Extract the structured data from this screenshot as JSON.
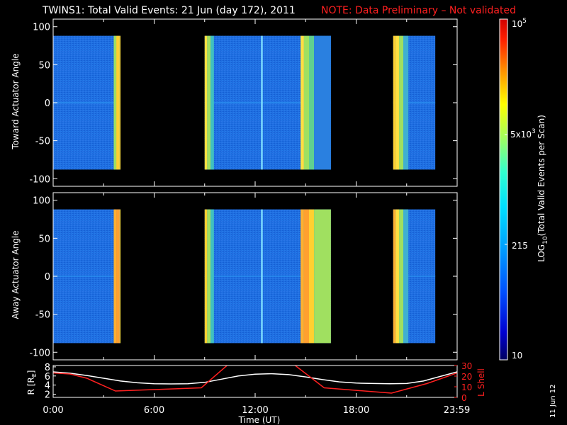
{
  "title": {
    "main": "TWINS1: Total Valid Events: 21 Jun (day 172), 2011",
    "note": "NOTE: Data Preliminary – Not validated"
  },
  "colorbar": {
    "label": "LOG10(Total Valid Events per Scan)",
    "label_main": "LOG",
    "label_sub": "10",
    "label_rest": "(Total Valid Events per Scan)",
    "ticks": [
      "10",
      "215",
      "5x10^3",
      "10^5"
    ],
    "tick_top": "10",
    "tick_top_sup": "5",
    "tick_5k_base": "5x10",
    "tick_5k_sup": "3",
    "tick_215": "215",
    "tick_10": "10",
    "range": [
      10,
      100000
    ],
    "scale": "log",
    "colormap": [
      "#000080",
      "#0000ff",
      "#0060ff",
      "#00c0ff",
      "#30ffd0",
      "#a0ff60",
      "#ffff00",
      "#ff9000",
      "#ff2000",
      "#d00000"
    ]
  },
  "stamp": "11 Jun 12",
  "colors": {
    "background": "#000000",
    "note": "#ff2020",
    "panel_border": "#ffffff",
    "r_line": "#ffffff",
    "lshell_line": "#ff2020"
  },
  "chart_data": [
    {
      "type": "heatmap",
      "ylabel": "Toward Actuator Angle",
      "yticks": [
        "100",
        "50",
        "0",
        "-50",
        "-100"
      ],
      "yticks_values": [
        100,
        50,
        0,
        -50,
        -100
      ],
      "ylim": [
        -110,
        110
      ],
      "xlim": [
        0,
        24
      ],
      "data_y_range": [
        -88,
        88
      ],
      "segments": [
        {
          "start": 0.0,
          "end": 4.0,
          "base": "#1e6ee0",
          "mid": "#2a8ef0",
          "edge_start": 3.6,
          "bands": [
            [
              3.6,
              3.75,
              "#a0e060"
            ],
            [
              3.75,
              3.95,
              "#ffd030"
            ],
            [
              3.95,
              4.0,
              "#ffe040"
            ]
          ]
        },
        {
          "start": 9.0,
          "end": 16.5,
          "base": "#1e6ee0",
          "mid": "#2a8ef0",
          "edge_start": null,
          "bands": [
            [
              9.0,
              9.15,
              "#ffe040"
            ],
            [
              9.15,
              9.35,
              "#a0e060"
            ],
            [
              9.35,
              9.55,
              "#40c0c0"
            ],
            [
              12.35,
              12.45,
              "#80e0ff"
            ],
            [
              14.7,
              14.9,
              "#ffe040"
            ],
            [
              14.9,
              15.2,
              "#a0e060"
            ],
            [
              15.2,
              15.5,
              "#60d090"
            ],
            [
              15.5,
              16.5,
              "#2a80e0"
            ]
          ]
        },
        {
          "start": 20.2,
          "end": 22.7,
          "base": "#1e6ee0",
          "mid": "#2a8ef0",
          "edge_start": null,
          "bands": [
            [
              20.2,
              20.35,
              "#ffd030"
            ],
            [
              20.35,
              20.55,
              "#ffe040"
            ],
            [
              20.55,
              20.8,
              "#a0e060"
            ],
            [
              20.8,
              21.1,
              "#40b0d0"
            ]
          ]
        }
      ]
    },
    {
      "type": "heatmap",
      "ylabel": "Away Actuator Angle",
      "yticks": [
        "100",
        "50",
        "0",
        "-50",
        "-100"
      ],
      "yticks_values": [
        100,
        50,
        0,
        -50,
        -100
      ],
      "ylim": [
        -110,
        110
      ],
      "xlim": [
        0,
        24
      ],
      "data_y_range": [
        -88,
        88
      ],
      "segments": [
        {
          "start": 0.0,
          "end": 4.0,
          "base": "#1e6ee0",
          "mid": "#2a8ef0",
          "edge_start": 3.6,
          "bands": [
            [
              3.6,
              3.75,
              "#ffb030"
            ],
            [
              3.75,
              3.95,
              "#ffa030"
            ],
            [
              3.95,
              4.0,
              "#ffe040"
            ]
          ]
        },
        {
          "start": 9.0,
          "end": 16.5,
          "base": "#1e6ee0",
          "mid": "#2a8ef0",
          "edge_start": null,
          "bands": [
            [
              9.0,
              9.15,
              "#ffd030"
            ],
            [
              9.15,
              9.35,
              "#a0e060"
            ],
            [
              9.35,
              9.55,
              "#40c0c0"
            ],
            [
              12.35,
              12.45,
              "#80e0ff"
            ],
            [
              14.7,
              14.9,
              "#ffb030"
            ],
            [
              14.9,
              15.2,
              "#ffa030"
            ],
            [
              15.2,
              15.5,
              "#ffd030"
            ],
            [
              15.5,
              16.5,
              "#a0e060"
            ]
          ]
        },
        {
          "start": 20.2,
          "end": 22.7,
          "base": "#1e6ee0",
          "mid": "#2a8ef0",
          "edge_start": null,
          "bands": [
            [
              20.2,
              20.35,
              "#ffb030"
            ],
            [
              20.35,
              20.55,
              "#ffe040"
            ],
            [
              20.55,
              20.8,
              "#a0e060"
            ],
            [
              20.8,
              21.1,
              "#40b0d0"
            ]
          ]
        }
      ]
    },
    {
      "type": "line",
      "xlabel": "Time (UT)",
      "xticks": [
        "0:00",
        "6:00",
        "12:00",
        "18:00",
        "23:59"
      ],
      "xticks_values": [
        0,
        6,
        12,
        18,
        23.98
      ],
      "xlim": [
        0,
        24
      ],
      "left_axis": {
        "label": "R [RE]",
        "label_main": "R [R",
        "label_sub": "E",
        "label_close": "]",
        "ticks": [
          "2",
          "4",
          "6",
          "8"
        ],
        "ticks_values": [
          2,
          4,
          6,
          8
        ],
        "ylim": [
          1.3,
          8.3
        ]
      },
      "right_axis": {
        "label": "L Shell",
        "ticks": [
          "0",
          "10",
          "20",
          "30"
        ],
        "ticks_values": [
          0,
          10,
          20,
          30
        ],
        "ylim": [
          0,
          30
        ]
      },
      "series": [
        {
          "axis": "left",
          "x": [
            0,
            1,
            2,
            3,
            4,
            5,
            6,
            7,
            8,
            9,
            10,
            11,
            12,
            13,
            14,
            15,
            16,
            17,
            18,
            19,
            20,
            21,
            22,
            23,
            24
          ],
          "y": [
            6.9,
            6.6,
            6.1,
            5.5,
            4.9,
            4.5,
            4.3,
            4.25,
            4.3,
            4.6,
            5.3,
            6.0,
            6.4,
            6.5,
            6.3,
            5.8,
            5.2,
            4.7,
            4.45,
            4.35,
            4.3,
            4.35,
            4.9,
            5.9,
            6.9
          ]
        },
        {
          "axis": "right",
          "x": [
            0,
            1,
            2,
            3.7,
            8.8,
            10.4,
            14.3,
            16.1,
            20.1,
            22.2,
            24
          ],
          "y": [
            23,
            22,
            18,
            6,
            9,
            31,
            31,
            9,
            4,
            13,
            23
          ]
        }
      ]
    }
  ]
}
